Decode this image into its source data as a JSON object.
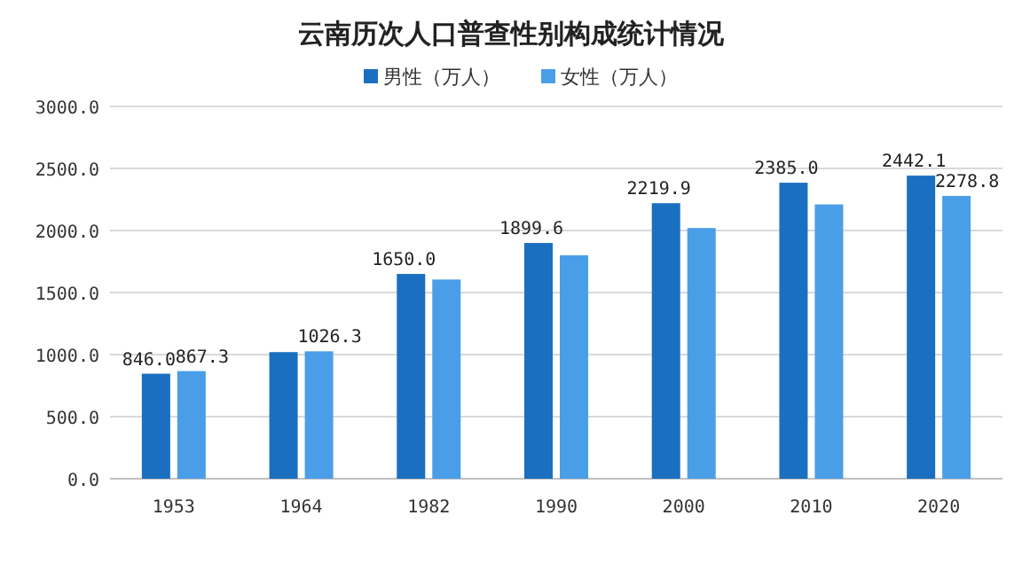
{
  "chart_data": {
    "type": "bar",
    "title": "云南历次人口普查性别构成统计情况",
    "categories": [
      "1953",
      "1964",
      "1982",
      "1990",
      "2000",
      "2010",
      "2020"
    ],
    "series": [
      {
        "name": "男性（万人）",
        "color": "#1a6fc0",
        "values": [
          846.0,
          1020,
          1650.0,
          1899.6,
          2219.9,
          2385.0,
          2442.1
        ],
        "value_labels": [
          "846.0",
          null,
          "1650.0",
          "1899.6",
          "2219.9",
          "2385.0",
          "2442.1"
        ]
      },
      {
        "name": "女性（万人）",
        "color": "#4a9ee8",
        "values": [
          867.3,
          1026.3,
          1605,
          1800,
          2020,
          2210,
          2278.8
        ],
        "value_labels": [
          "867.3",
          "1026.3",
          null,
          null,
          null,
          null,
          "2278.8"
        ]
      }
    ],
    "ylim": [
      0,
      3000
    ],
    "yticks": [
      {
        "value": 0,
        "label": "0.0"
      },
      {
        "value": 500,
        "label": "500.0"
      },
      {
        "value": 1000,
        "label": "1000.0"
      },
      {
        "value": 1500,
        "label": "1500.0"
      },
      {
        "value": 2000,
        "label": "2000.0"
      },
      {
        "value": 2500,
        "label": "2500.0"
      },
      {
        "value": 3000,
        "label": "3000.0"
      }
    ],
    "grid": "y",
    "legend": "top"
  }
}
